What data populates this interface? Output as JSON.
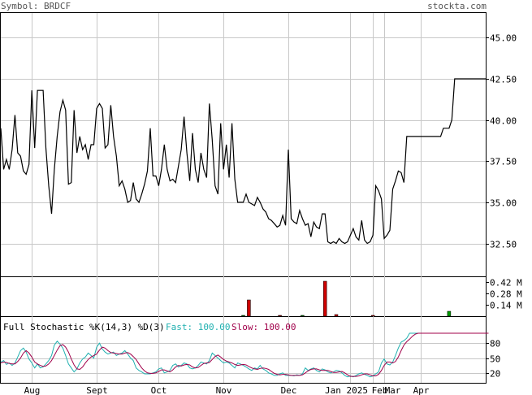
{
  "header": {
    "symbol_label": "Symbol: BRDCF",
    "site_label": "stockta.com"
  },
  "colors": {
    "background": "#ffffff",
    "grid": "#c8c8c8",
    "price_line": "#000000",
    "volume_down": "#cc0000",
    "volume_up": "#009900",
    "fast_line": "#20b0b0",
    "slow_line": "#a0004a",
    "header_text": "#555555"
  },
  "chart_data": [
    {
      "type": "line",
      "name": "price",
      "ylim": [
        30.5,
        46.5
      ],
      "y_ticks": [
        32.5,
        35.0,
        37.5,
        40.0,
        42.5,
        45.0
      ],
      "y_tick_labels": [
        "32.50",
        "35.00",
        "37.50",
        "40.00",
        "42.50",
        "45.00"
      ],
      "x_ticks": [
        "Aug",
        "Sept",
        "Oct",
        "Nov",
        "Dec",
        "Jan 2025",
        "Feb",
        "Mar",
        "Apr"
      ],
      "grid": true,
      "values": [
        39.5,
        37.0,
        37.6,
        37.0,
        38.2,
        40.3,
        38.0,
        37.8,
        36.9,
        36.7,
        37.3,
        41.8,
        38.3,
        41.8,
        41.8,
        41.8,
        38.3,
        36.0,
        34.3,
        37.0,
        39.0,
        40.5,
        41.2,
        40.6,
        36.1,
        36.2,
        40.6,
        38.0,
        39.0,
        38.2,
        38.5,
        37.6,
        38.5,
        38.5,
        40.7,
        41.0,
        40.7,
        38.3,
        38.5,
        40.9,
        39.0,
        37.8,
        36.0,
        36.3,
        35.8,
        35.0,
        35.1,
        36.2,
        35.2,
        35.0,
        35.5,
        36.1,
        36.9,
        39.5,
        36.6,
        36.6,
        36.0,
        37.0,
        38.5,
        37.0,
        36.3,
        36.4,
        36.2,
        37.2,
        38.2,
        40.2,
        38.0,
        36.3,
        39.2,
        37.0,
        36.2,
        38.0,
        37.0,
        36.5,
        41.0,
        38.8,
        36.0,
        35.5,
        39.8,
        37.0,
        38.5,
        36.5,
        39.8,
        36.4,
        35.0,
        35.0,
        35.0,
        35.5,
        35.0,
        34.9,
        34.8,
        35.3,
        35.0,
        34.6,
        34.4,
        34.0,
        33.9,
        33.7,
        33.5,
        33.6,
        34.2,
        33.6,
        38.2,
        34.0,
        33.8,
        33.7,
        34.5,
        34.0,
        33.6,
        33.7,
        32.9,
        33.8,
        33.5,
        33.4,
        34.3,
        34.3,
        32.6,
        32.5,
        32.6,
        32.5,
        32.8,
        32.6,
        32.5,
        32.6,
        33.0,
        33.4,
        32.9,
        32.7,
        33.9,
        32.7,
        32.5,
        32.6,
        33.0,
        36.0,
        35.7,
        35.2,
        32.8,
        33.0,
        33.3,
        35.8,
        36.3,
        36.9,
        36.8,
        36.2,
        39.0,
        39.0,
        39.0,
        39.0,
        39.0,
        39.0,
        39.0,
        39.0,
        39.0,
        39.0,
        39.0,
        39.0,
        39.0,
        39.5,
        39.5,
        39.5,
        40.0,
        42.5,
        42.5,
        42.5,
        42.5,
        42.5,
        42.5,
        42.5,
        42.5,
        42.5,
        42.5,
        42.5,
        42.5
      ]
    },
    {
      "type": "bar",
      "name": "volume",
      "ylim": [
        0,
        0.48
      ],
      "y_ticks": [
        0.14,
        0.28,
        0.42
      ],
      "y_tick_labels": [
        "0.14 M",
        "0.28 M",
        "0.42 M"
      ],
      "unit": "M",
      "bars": [
        {
          "i": 86,
          "value": 0.006,
          "dir": "up"
        },
        {
          "i": 88,
          "value": 0.2,
          "dir": "down"
        },
        {
          "i": 99,
          "value": 0.008,
          "dir": "down"
        },
        {
          "i": 107,
          "value": 0.006,
          "dir": "up"
        },
        {
          "i": 115,
          "value": 0.43,
          "dir": "down"
        },
        {
          "i": 119,
          "value": 0.02,
          "dir": "down"
        },
        {
          "i": 132,
          "value": 0.008,
          "dir": "down"
        },
        {
          "i": 159,
          "value": 0.06,
          "dir": "up"
        }
      ]
    },
    {
      "type": "line",
      "name": "stochastic",
      "title": "Full Stochastic %K(14,3) %D(3)",
      "fast_label": "Fast: 100.00",
      "slow_label": "Slow: 100.00",
      "ylim": [
        0,
        100
      ],
      "y_ticks": [
        20,
        50,
        80
      ],
      "y_tick_labels": [
        "20",
        "50",
        "80"
      ],
      "fast": [
        42,
        45,
        37,
        40,
        35,
        40,
        52,
        65,
        70,
        62,
        48,
        40,
        30,
        38,
        30,
        32,
        38,
        45,
        55,
        76,
        84,
        78,
        70,
        55,
        38,
        30,
        22,
        28,
        40,
        48,
        52,
        60,
        55,
        50,
        72,
        80,
        68,
        62,
        58,
        60,
        62,
        55,
        58,
        60,
        65,
        58,
        50,
        45,
        30,
        25,
        22,
        18,
        18,
        18,
        20,
        22,
        28,
        30,
        20,
        22,
        25,
        35,
        38,
        32,
        35,
        40,
        38,
        30,
        28,
        30,
        35,
        42,
        40,
        38,
        45,
        60,
        55,
        50,
        45,
        40,
        42,
        40,
        35,
        30,
        40,
        38,
        35,
        32,
        28,
        25,
        30,
        28,
        35,
        28,
        25,
        20,
        18,
        15,
        15,
        18,
        20,
        15,
        15,
        15,
        14,
        16,
        15,
        18,
        30,
        25,
        28,
        30,
        25,
        22,
        28,
        26,
        22,
        20,
        22,
        25,
        24,
        20,
        15,
        12,
        14,
        12,
        15,
        18,
        20,
        17,
        15,
        12,
        14,
        18,
        22,
        40,
        48,
        38,
        36,
        42,
        55,
        70,
        82,
        85,
        90,
        100,
        100,
        100,
        100,
        100,
        100,
        100,
        100,
        100,
        100,
        100,
        100,
        100,
        100,
        100,
        100,
        100,
        100,
        100,
        100,
        100,
        100,
        100,
        100,
        100,
        100,
        100,
        100,
        100
      ],
      "slow": [
        40,
        42,
        41,
        39,
        38,
        38,
        43,
        50,
        60,
        65,
        60,
        52,
        42,
        38,
        35,
        33,
        34,
        38,
        45,
        55,
        66,
        75,
        77,
        72,
        62,
        48,
        36,
        28,
        27,
        32,
        40,
        47,
        52,
        55,
        58,
        66,
        72,
        70,
        65,
        61,
        60,
        59,
        58,
        58,
        60,
        61,
        58,
        53,
        47,
        38,
        30,
        24,
        20,
        19,
        19,
        20,
        23,
        26,
        26,
        24,
        22,
        26,
        32,
        35,
        34,
        36,
        37,
        36,
        32,
        30,
        31,
        35,
        39,
        40,
        41,
        47,
        53,
        56,
        52,
        47,
        44,
        42,
        40,
        37,
        35,
        36,
        37,
        36,
        33,
        30,
        28,
        27,
        29,
        30,
        29,
        27,
        23,
        19,
        17,
        16,
        17,
        17,
        16,
        15,
        15,
        15,
        15,
        16,
        20,
        24,
        27,
        28,
        28,
        26,
        25,
        25,
        25,
        23,
        21,
        21,
        22,
        23,
        20,
        16,
        13,
        13,
        13,
        14,
        16,
        18,
        18,
        16,
        14,
        14,
        17,
        25,
        35,
        42,
        42,
        40,
        43,
        52,
        65,
        76,
        83,
        88,
        94,
        98,
        100,
        100,
        100,
        100,
        100,
        100,
        100,
        100,
        100,
        100,
        100,
        100,
        100,
        100,
        100,
        100,
        100,
        100,
        100,
        100,
        100,
        100,
        100,
        100,
        100,
        100
      ]
    }
  ]
}
